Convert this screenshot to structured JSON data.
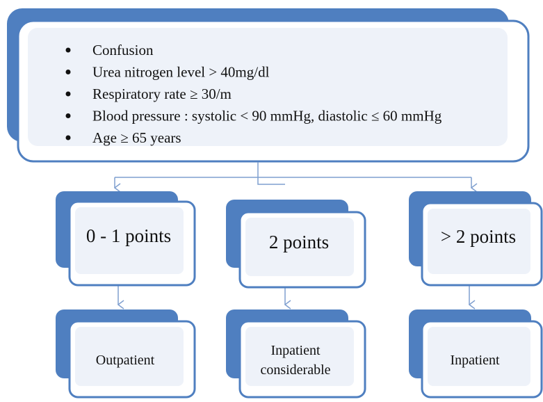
{
  "criteria": [
    "Confusion",
    "Urea nitrogen level > 40mg/dl",
    "Respiratory rate ≥ 30/m",
    "Blood pressure : systolic < 90 mmHg, diastolic ≤ 60 mmHg",
    "Age ≥ 65 years"
  ],
  "scores": [
    "0 - 1 points",
    "2 points",
    "> 2 points"
  ],
  "outcomes": [
    {
      "lines": [
        "Outpatient"
      ]
    },
    {
      "lines": [
        "Inpatient",
        "considerable"
      ]
    },
    {
      "lines": [
        "Inpatient"
      ]
    }
  ]
}
